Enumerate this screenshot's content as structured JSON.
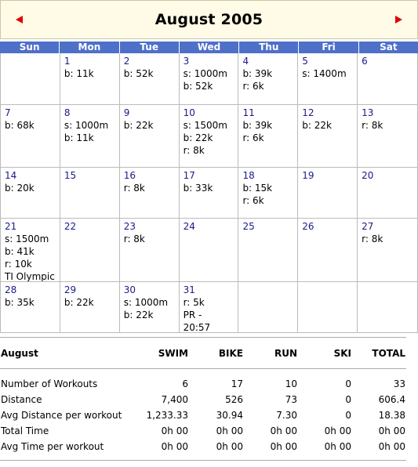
{
  "calendar": {
    "title": "August 2005",
    "weekdays": [
      "Sun",
      "Mon",
      "Tue",
      "Wed",
      "Thu",
      "Fri",
      "Sat"
    ],
    "weeks": [
      [
        {
          "day": "",
          "entries": []
        },
        {
          "day": "1",
          "entries": [
            "b: 11k"
          ]
        },
        {
          "day": "2",
          "entries": [
            "b: 52k"
          ]
        },
        {
          "day": "3",
          "entries": [
            "s: 1000m",
            "b: 52k"
          ]
        },
        {
          "day": "4",
          "entries": [
            "b: 39k",
            "r: 6k"
          ]
        },
        {
          "day": "5",
          "entries": [
            "s: 1400m"
          ]
        },
        {
          "day": "6",
          "entries": []
        }
      ],
      [
        {
          "day": "7",
          "entries": [
            "b: 68k"
          ]
        },
        {
          "day": "8",
          "entries": [
            "s: 1000m",
            "b: 11k"
          ]
        },
        {
          "day": "9",
          "entries": [
            "b: 22k"
          ]
        },
        {
          "day": "10",
          "entries": [
            "s: 1500m",
            "b: 22k",
            "r: 8k"
          ]
        },
        {
          "day": "11",
          "entries": [
            "b: 39k",
            "r: 6k"
          ]
        },
        {
          "day": "12",
          "entries": [
            "b: 22k"
          ]
        },
        {
          "day": "13",
          "entries": [
            "r: 8k"
          ]
        }
      ],
      [
        {
          "day": "14",
          "entries": [
            "b: 20k"
          ]
        },
        {
          "day": "15",
          "entries": []
        },
        {
          "day": "16",
          "entries": [
            "r: 8k"
          ]
        },
        {
          "day": "17",
          "entries": [
            "b: 33k"
          ]
        },
        {
          "day": "18",
          "entries": [
            "b: 15k",
            "r: 6k"
          ]
        },
        {
          "day": "19",
          "entries": []
        },
        {
          "day": "20",
          "entries": []
        }
      ],
      [
        {
          "day": "21",
          "entries": [
            "s: 1500m",
            "b: 41k",
            "r: 10k",
            "TI Olympic"
          ]
        },
        {
          "day": "22",
          "entries": []
        },
        {
          "day": "23",
          "entries": [
            "r: 8k"
          ]
        },
        {
          "day": "24",
          "entries": []
        },
        {
          "day": "25",
          "entries": []
        },
        {
          "day": "26",
          "entries": []
        },
        {
          "day": "27",
          "entries": [
            "r: 8k"
          ]
        }
      ],
      [
        {
          "day": "28",
          "entries": [
            "b: 35k"
          ]
        },
        {
          "day": "29",
          "entries": [
            "b: 22k"
          ]
        },
        {
          "day": "30",
          "entries": [
            "s: 1000m",
            "b: 22k"
          ]
        },
        {
          "day": "31",
          "entries": [
            "r: 5k",
            "PR -",
            "20:57"
          ]
        },
        {
          "day": "",
          "entries": []
        },
        {
          "day": "",
          "entries": []
        },
        {
          "day": "",
          "entries": []
        }
      ]
    ],
    "week_heights": [
      66,
      80,
      65,
      81,
      65
    ],
    "colors": {
      "header_bg": "#4f70c9",
      "title_bg": "#fffbe6",
      "arrow": "#e00000",
      "day_number": "#1a1a8c"
    }
  },
  "summary": {
    "header": {
      "label": "August",
      "cols": [
        "SWIM",
        "BIKE",
        "RUN",
        "SKI",
        "TOTAL"
      ]
    },
    "rows": [
      {
        "label": "Number of Workouts",
        "cols": [
          "6",
          "17",
          "10",
          "0",
          "33"
        ]
      },
      {
        "label": "Distance",
        "cols": [
          "7,400",
          "526",
          "73",
          "0",
          "606.4"
        ]
      },
      {
        "label": "Avg Distance per workout",
        "cols": [
          "1,233.33",
          "30.94",
          "7.30",
          "0",
          "18.38"
        ]
      },
      {
        "label": "Total Time",
        "cols": [
          "0h 00",
          "0h 00",
          "0h 00",
          "0h 00",
          "0h 00"
        ]
      },
      {
        "label": "Avg Time per workout",
        "cols": [
          "0h 00",
          "0h 00",
          "0h 00",
          "0h 00",
          "0h 00"
        ]
      }
    ]
  }
}
